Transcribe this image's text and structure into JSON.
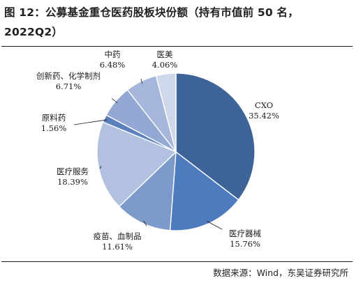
{
  "header": {
    "title": "图 12：公募基金重仓医药股板块份额（持有市值前 50 名，2022Q2）"
  },
  "footer": {
    "source": "数据来源：Wind，东吴证券研究所"
  },
  "chart_data": {
    "type": "pie",
    "title": "图 12：公募基金重仓医药股板块份额（持有市值前 50 名，2022Q2）",
    "start_angle": "12 o'clock",
    "direction": "clockwise",
    "slices": [
      {
        "label": "CXO",
        "value": 35.42,
        "value_label": "35.42%",
        "color": "#3d6399"
      },
      {
        "label": "医疗器械",
        "value": 15.76,
        "value_label": "15.76%",
        "color": "#4d7bbd"
      },
      {
        "label": "疫苗、血制品",
        "value": 11.61,
        "value_label": "11.61%",
        "color": "#7e9acb"
      },
      {
        "label": "医疗服务",
        "value": 18.39,
        "value_label": "18.39%",
        "color": "#b2c1e0"
      },
      {
        "label": "原料药",
        "value": 1.56,
        "value_label": "1.56%",
        "color": "#5b80bd"
      },
      {
        "label": "创新药、化学制剂",
        "value": 6.71,
        "value_label": "6.71%",
        "color": "#93a9d4"
      },
      {
        "label": "中药",
        "value": 6.48,
        "value_label": "6.48%",
        "color": "#a7b7db"
      },
      {
        "label": "医美",
        "value": 4.06,
        "value_label": "4.06%",
        "color": "#cfd7ea"
      }
    ]
  }
}
